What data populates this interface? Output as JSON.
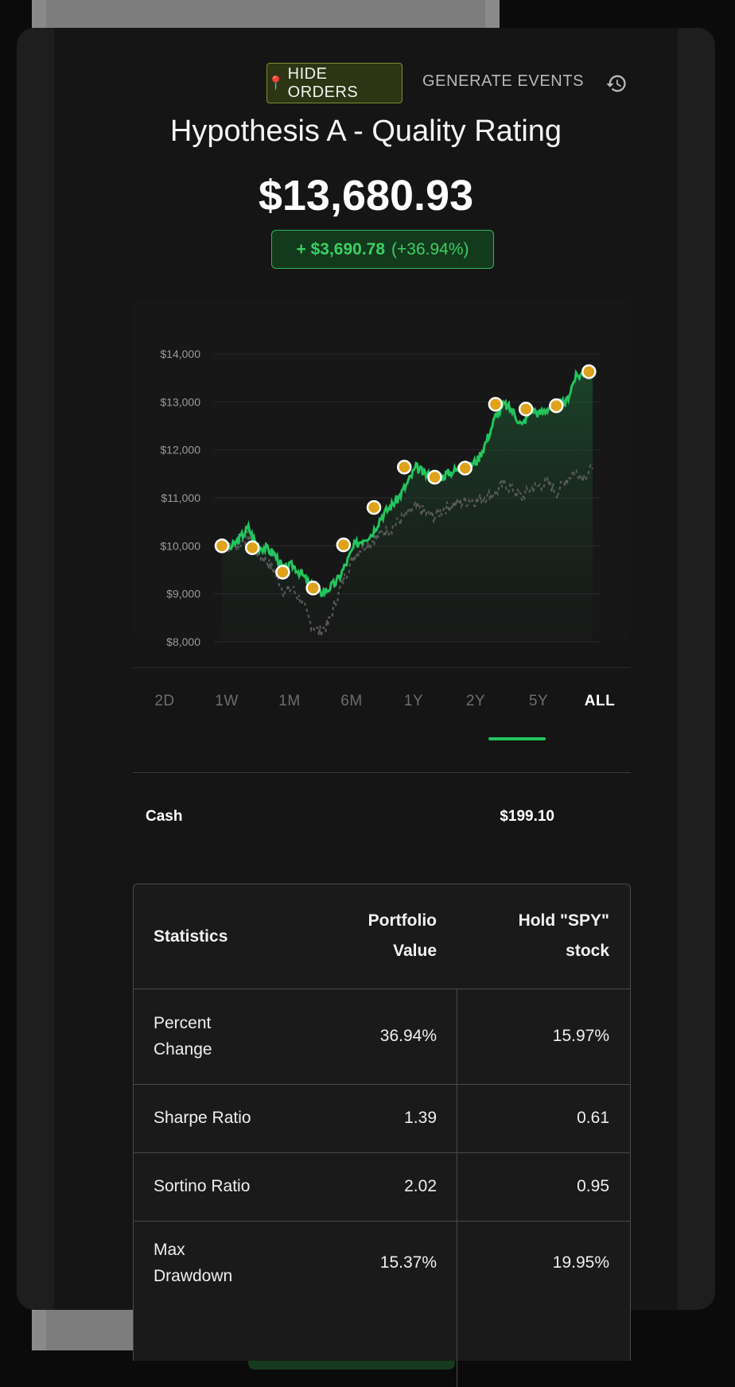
{
  "toolbar": {
    "hide_orders_label": "HIDE ORDERS",
    "generate_events_label": "GENERATE EVENTS"
  },
  "header": {
    "title": "Hypothesis A - Quality Rating",
    "value": "$13,680.93",
    "change_abs": "+ $3,690.78",
    "change_pct": "(+36.94%)"
  },
  "colors": {
    "accent": "#22c55e",
    "marker": "#e0a21a"
  },
  "chart_data": {
    "type": "line",
    "ylim": [
      8000,
      14000
    ],
    "y_ticks": [
      "$14,000",
      "$13,000",
      "$12,000",
      "$11,000",
      "$10,000",
      "$9,000",
      "$8,000"
    ],
    "series": [
      {
        "values": [
          10000,
          9960,
          10150,
          10380,
          10000,
          9950,
          9820,
          9500,
          9600,
          9420,
          9180,
          9000,
          9100,
          9250,
          9600,
          10000,
          10150,
          10250,
          10600,
          10800,
          11000,
          11300,
          11640,
          11500,
          11420,
          11450,
          11550,
          11600,
          11650,
          11800,
          12200,
          12700,
          12950,
          12800,
          12500,
          12850,
          12750,
          12880,
          12900,
          13000,
          13500,
          13600,
          13680
        ]
      },
      {
        "values": [
          10000,
          9950,
          10050,
          10200,
          9850,
          9700,
          9450,
          9050,
          9100,
          8850,
          8400,
          8200,
          8350,
          8900,
          9400,
          9800,
          10000,
          10100,
          10250,
          10350,
          10500,
          10650,
          10800,
          10700,
          10600,
          10750,
          10850,
          10900,
          10950,
          10950,
          11050,
          11100,
          11300,
          11150,
          11000,
          11200,
          11250,
          11300,
          11100,
          11400,
          11550,
          11450,
          11597
        ]
      }
    ],
    "markers": [
      10000,
      9960,
      9450,
      9120,
      10020,
      10800,
      11640,
      11430,
      11620,
      12950,
      12850,
      12920,
      13630
    ]
  },
  "range_tabs": [
    "2D",
    "1W",
    "1M",
    "6M",
    "1Y",
    "2Y",
    "5Y",
    "ALL"
  ],
  "active_tab": "ALL",
  "cash": {
    "label": "Cash",
    "value": "$199.10"
  },
  "stats": {
    "headers": {
      "col1": "Statistics",
      "col2_line1": "Portfolio",
      "col2_line2": "Value",
      "col3_line1": "Hold \"SPY\"",
      "col3_line2": "stock"
    },
    "rows": [
      {
        "label_line1": "Percent",
        "label_line2": "Change",
        "portfolio": "36.94%",
        "hold": "15.97%"
      },
      {
        "label_line1": "Sharpe Ratio",
        "label_line2": "",
        "portfolio": "1.39",
        "hold": "0.61"
      },
      {
        "label_line1": "Sortino Ratio",
        "label_line2": "",
        "portfolio": "2.02",
        "hold": "0.95"
      },
      {
        "label_line1": "Max",
        "label_line2": "Drawdown",
        "portfolio": "15.37%",
        "hold": "19.95%"
      }
    ]
  }
}
